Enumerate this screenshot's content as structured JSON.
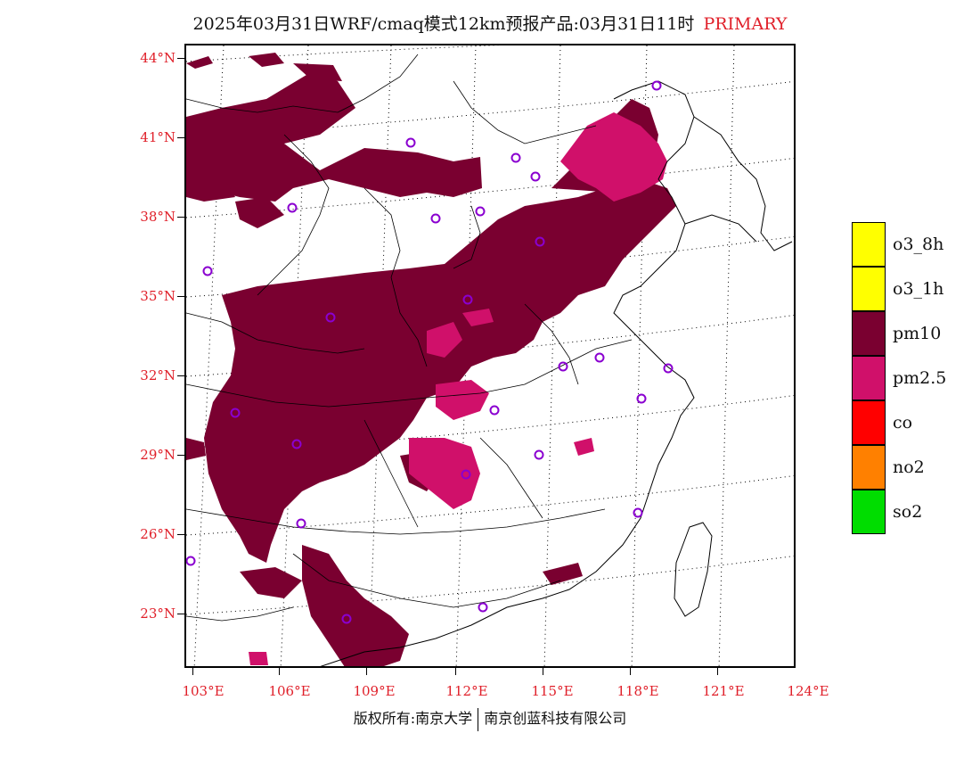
{
  "title": {
    "main": "2025年03月31日WRF/cmaq模式12km预报产品:03月31日11时",
    "tag": "PRIMARY"
  },
  "axes": {
    "lat_labels": [
      "44°N",
      "41°N",
      "38°N",
      "35°N",
      "32°N",
      "29°N",
      "26°N",
      "23°N"
    ],
    "lon_labels": [
      "103°E",
      "106°E",
      "109°E",
      "112°E",
      "115°E",
      "118°E",
      "121°E",
      "124°E"
    ]
  },
  "legend": {
    "items": [
      {
        "label": "o3_8h",
        "color": "#ffff00"
      },
      {
        "label": "o3_1h",
        "color": "#ffff00"
      },
      {
        "label": "pm10",
        "color": "#7a0030"
      },
      {
        "label": "pm2.5",
        "color": "#d0106a"
      },
      {
        "label": "co",
        "color": "#ff0000"
      },
      {
        "label": "no2",
        "color": "#ff8000"
      },
      {
        "label": "so2",
        "color": "#00dd00"
      }
    ]
  },
  "colors": {
    "pm10": "#7a0030",
    "pm25": "#d0106a",
    "station_marker": "#8a00d0",
    "label_red": "#e0202a"
  },
  "footer": {
    "left": "版权所有:南京大学",
    "right": "南京创蓝科技有限公司"
  }
}
